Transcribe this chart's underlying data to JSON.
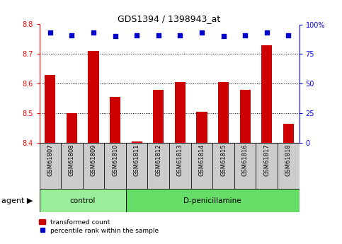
{
  "title": "GDS1394 / 1398943_at",
  "samples": [
    "GSM61807",
    "GSM61808",
    "GSM61809",
    "GSM61810",
    "GSM61811",
    "GSM61812",
    "GSM61813",
    "GSM61814",
    "GSM61815",
    "GSM61816",
    "GSM61817",
    "GSM61818"
  ],
  "bar_values": [
    8.63,
    8.5,
    8.71,
    8.555,
    8.405,
    8.578,
    8.605,
    8.505,
    8.605,
    8.578,
    8.73,
    8.465
  ],
  "percentile_values": [
    93,
    91,
    93,
    90,
    91,
    91,
    91,
    93,
    90,
    91,
    93,
    91
  ],
  "n_control": 4,
  "n_dpen": 8,
  "ylim_left": [
    8.4,
    8.8
  ],
  "ylim_right": [
    0,
    100
  ],
  "yticks_left": [
    8.4,
    8.5,
    8.6,
    8.7,
    8.8
  ],
  "yticks_right": [
    0,
    25,
    50,
    75,
    100
  ],
  "ytick_labels_right": [
    "0",
    "25",
    "50",
    "75",
    "100%"
  ],
  "bar_color": "#cc0000",
  "percentile_color": "#0000cc",
  "tick_bg_color": "#cccccc",
  "control_bg": "#99ee99",
  "dpen_bg": "#66dd66",
  "agent_label": "agent",
  "arrow": "▶",
  "control_label": "control",
  "dpen_label": "D-penicillamine",
  "legend_bar_label": "transformed count",
  "legend_pct_label": "percentile rank within the sample",
  "bar_width": 0.5,
  "left_tick_color": "red",
  "right_tick_color": "blue",
  "title_fontsize": 9,
  "tick_fontsize": 7,
  "label_fontsize": 7.5,
  "agent_fontsize": 8
}
